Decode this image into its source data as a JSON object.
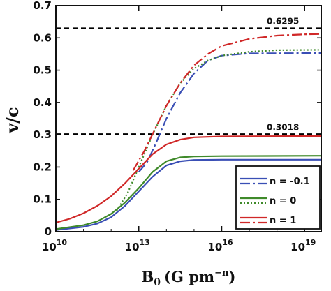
{
  "chart_data": {
    "type": "line",
    "xlabel": "B",
    "xlabel_sub": "0",
    "xlabel_units": "(G pm",
    "xlabel_sup": "−n",
    "xlabel_close": ")",
    "ylabel": "v/c",
    "xscale": "log10",
    "xlim_exp": [
      10,
      19.6
    ],
    "ylim": [
      0,
      0.7
    ],
    "x_ticks": [
      {
        "exp": 10,
        "base": "10",
        "sup": "10"
      },
      {
        "exp": 13,
        "base": "10",
        "sup": "13"
      },
      {
        "exp": 16,
        "base": "10",
        "sup": "16"
      },
      {
        "exp": 19,
        "base": "10",
        "sup": "19"
      }
    ],
    "y_ticks": [
      "0",
      "0.1",
      "0.2",
      "0.3",
      "0.4",
      "0.5",
      "0.6",
      "0.7"
    ],
    "reference_lines": [
      {
        "y": 0.6295,
        "label": "0.6295"
      },
      {
        "y": 0.3018,
        "label": "0.3018"
      }
    ],
    "legend": {
      "position": "bottom-right",
      "entries": [
        {
          "label": "n = -0.1",
          "color": "#3a4fb5"
        },
        {
          "label": "n = 0",
          "color": "#3f8a2a"
        },
        {
          "label": "n = 1",
          "color": "#d02828"
        }
      ]
    },
    "series": [
      {
        "n": "-0.1",
        "color": "#3a4fb5",
        "style": "solid",
        "points": [
          [
            10,
            0.005
          ],
          [
            11,
            0.015
          ],
          [
            11.5,
            0.025
          ],
          [
            12,
            0.045
          ],
          [
            12.5,
            0.08
          ],
          [
            13,
            0.125
          ],
          [
            13.5,
            0.17
          ],
          [
            14,
            0.205
          ],
          [
            14.5,
            0.218
          ],
          [
            15,
            0.222
          ],
          [
            16,
            0.223
          ],
          [
            19.6,
            0.223
          ]
        ]
      },
      {
        "n": "-0.1",
        "color": "#3a4fb5",
        "style": "dashdot",
        "points": [
          [
            13,
            0.185
          ],
          [
            13.3,
            0.215
          ],
          [
            13.6,
            0.27
          ],
          [
            14,
            0.35
          ],
          [
            14.5,
            0.43
          ],
          [
            15,
            0.49
          ],
          [
            15.5,
            0.53
          ],
          [
            16,
            0.545
          ],
          [
            17,
            0.552
          ],
          [
            19.6,
            0.553
          ]
        ]
      },
      {
        "n": "0",
        "color": "#3f8a2a",
        "style": "solid",
        "points": [
          [
            10,
            0.008
          ],
          [
            11,
            0.02
          ],
          [
            11.5,
            0.032
          ],
          [
            12,
            0.055
          ],
          [
            12.5,
            0.09
          ],
          [
            13,
            0.135
          ],
          [
            13.5,
            0.185
          ],
          [
            14,
            0.218
          ],
          [
            14.5,
            0.23
          ],
          [
            15,
            0.233
          ],
          [
            16,
            0.234
          ],
          [
            19.6,
            0.235
          ]
        ]
      },
      {
        "n": "0",
        "color": "#3f8a2a",
        "style": "dotted",
        "points": [
          [
            12.2,
            0.065
          ],
          [
            12.6,
            0.12
          ],
          [
            13,
            0.2
          ],
          [
            13.5,
            0.3
          ],
          [
            14,
            0.39
          ],
          [
            14.5,
            0.46
          ],
          [
            15,
            0.505
          ],
          [
            15.5,
            0.53
          ],
          [
            16,
            0.545
          ],
          [
            17,
            0.557
          ],
          [
            18,
            0.562
          ],
          [
            19.6,
            0.563
          ]
        ]
      },
      {
        "n": "1",
        "color": "#d02828",
        "style": "solid",
        "points": [
          [
            10,
            0.028
          ],
          [
            10.5,
            0.04
          ],
          [
            11,
            0.057
          ],
          [
            11.5,
            0.08
          ],
          [
            12,
            0.11
          ],
          [
            12.5,
            0.15
          ],
          [
            13,
            0.195
          ],
          [
            13.5,
            0.24
          ],
          [
            14,
            0.27
          ],
          [
            14.5,
            0.285
          ],
          [
            15,
            0.292
          ],
          [
            16,
            0.295
          ],
          [
            19.6,
            0.296
          ]
        ]
      },
      {
        "n": "1",
        "color": "#d02828",
        "style": "dashdot",
        "points": [
          [
            12.8,
            0.19
          ],
          [
            13.2,
            0.25
          ],
          [
            13.6,
            0.32
          ],
          [
            14,
            0.39
          ],
          [
            14.5,
            0.46
          ],
          [
            15,
            0.515
          ],
          [
            15.5,
            0.55
          ],
          [
            16,
            0.575
          ],
          [
            17,
            0.597
          ],
          [
            18,
            0.607
          ],
          [
            19,
            0.611
          ],
          [
            19.6,
            0.612
          ]
        ]
      }
    ]
  }
}
